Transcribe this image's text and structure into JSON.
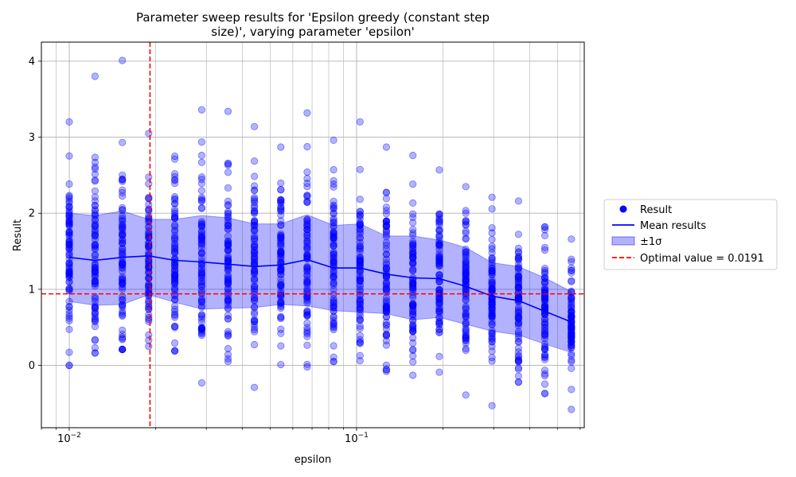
{
  "chart_data": {
    "type": "scatter",
    "title_line1": "Parameter sweep results for 'Epsilon greedy (constant step",
    "title_line2": "size)', varying parameter 'epsilon'",
    "xlabel": "epsilon",
    "ylabel": "Result",
    "x_scale": "log",
    "xlim": [
      0.008,
      0.62
    ],
    "ylim": [
      -0.82,
      4.25
    ],
    "grid": true,
    "legend_placement": "outside right",
    "x_major_ticks": [
      {
        "value": 0.01,
        "base": "10",
        "exp": "−2"
      },
      {
        "value": 0.1,
        "base": "10",
        "exp": "−1"
      }
    ],
    "y_ticks": [
      {
        "value": 0,
        "label": "0"
      },
      {
        "value": 1,
        "label": "1"
      },
      {
        "value": 2,
        "label": "2"
      },
      {
        "value": 3,
        "label": "3"
      },
      {
        "value": 4,
        "label": "4"
      }
    ],
    "x": [
      0.01,
      0.0123,
      0.0153,
      0.0189,
      0.0233,
      0.0289,
      0.0357,
      0.0441,
      0.0545,
      0.0673,
      0.0832,
      0.1028,
      0.127,
      0.157,
      0.194,
      0.24,
      0.296,
      0.366,
      0.452,
      0.559
    ],
    "mean": [
      1.42,
      1.38,
      1.42,
      1.44,
      1.38,
      1.36,
      1.33,
      1.3,
      1.32,
      1.39,
      1.28,
      1.28,
      1.2,
      1.15,
      1.14,
      1.04,
      0.91,
      0.85,
      0.71,
      0.57
    ],
    "upper": [
      2.0,
      1.97,
      2.03,
      1.92,
      1.92,
      1.97,
      1.94,
      1.86,
      1.86,
      1.98,
      1.84,
      1.86,
      1.7,
      1.7,
      1.65,
      1.55,
      1.35,
      1.3,
      1.15,
      0.97
    ],
    "lower": [
      0.84,
      0.79,
      0.8,
      0.93,
      0.83,
      0.74,
      0.75,
      0.76,
      0.8,
      0.78,
      0.72,
      0.7,
      0.68,
      0.6,
      0.63,
      0.54,
      0.45,
      0.4,
      0.28,
      0.17
    ],
    "point_max": [
      3.2,
      3.8,
      4.01,
      3.05,
      2.75,
      3.36,
      3.34,
      3.14,
      2.87,
      3.32,
      2.96,
      3.2,
      2.87,
      2.76,
      2.57,
      2.35,
      2.21,
      2.16,
      1.82,
      1.66
    ],
    "point_min": [
      0.0,
      0.16,
      0.21,
      0.25,
      0.19,
      -0.23,
      0.05,
      -0.29,
      0.01,
      -0.02,
      0.05,
      0.06,
      -0.08,
      -0.13,
      -0.09,
      -0.39,
      -0.53,
      -0.22,
      -0.37,
      -0.58
    ],
    "optimal_x": 0.0191,
    "optimal_y": 0.94,
    "series": [
      {
        "name": "Result",
        "color": "#0000ff"
      },
      {
        "name": "Mean results",
        "color": "#0000ff"
      },
      {
        "name": "±1σ",
        "color": "#0000ff"
      },
      {
        "name": "Optimal value = 0.0191",
        "color": "#ff0000"
      }
    ]
  }
}
